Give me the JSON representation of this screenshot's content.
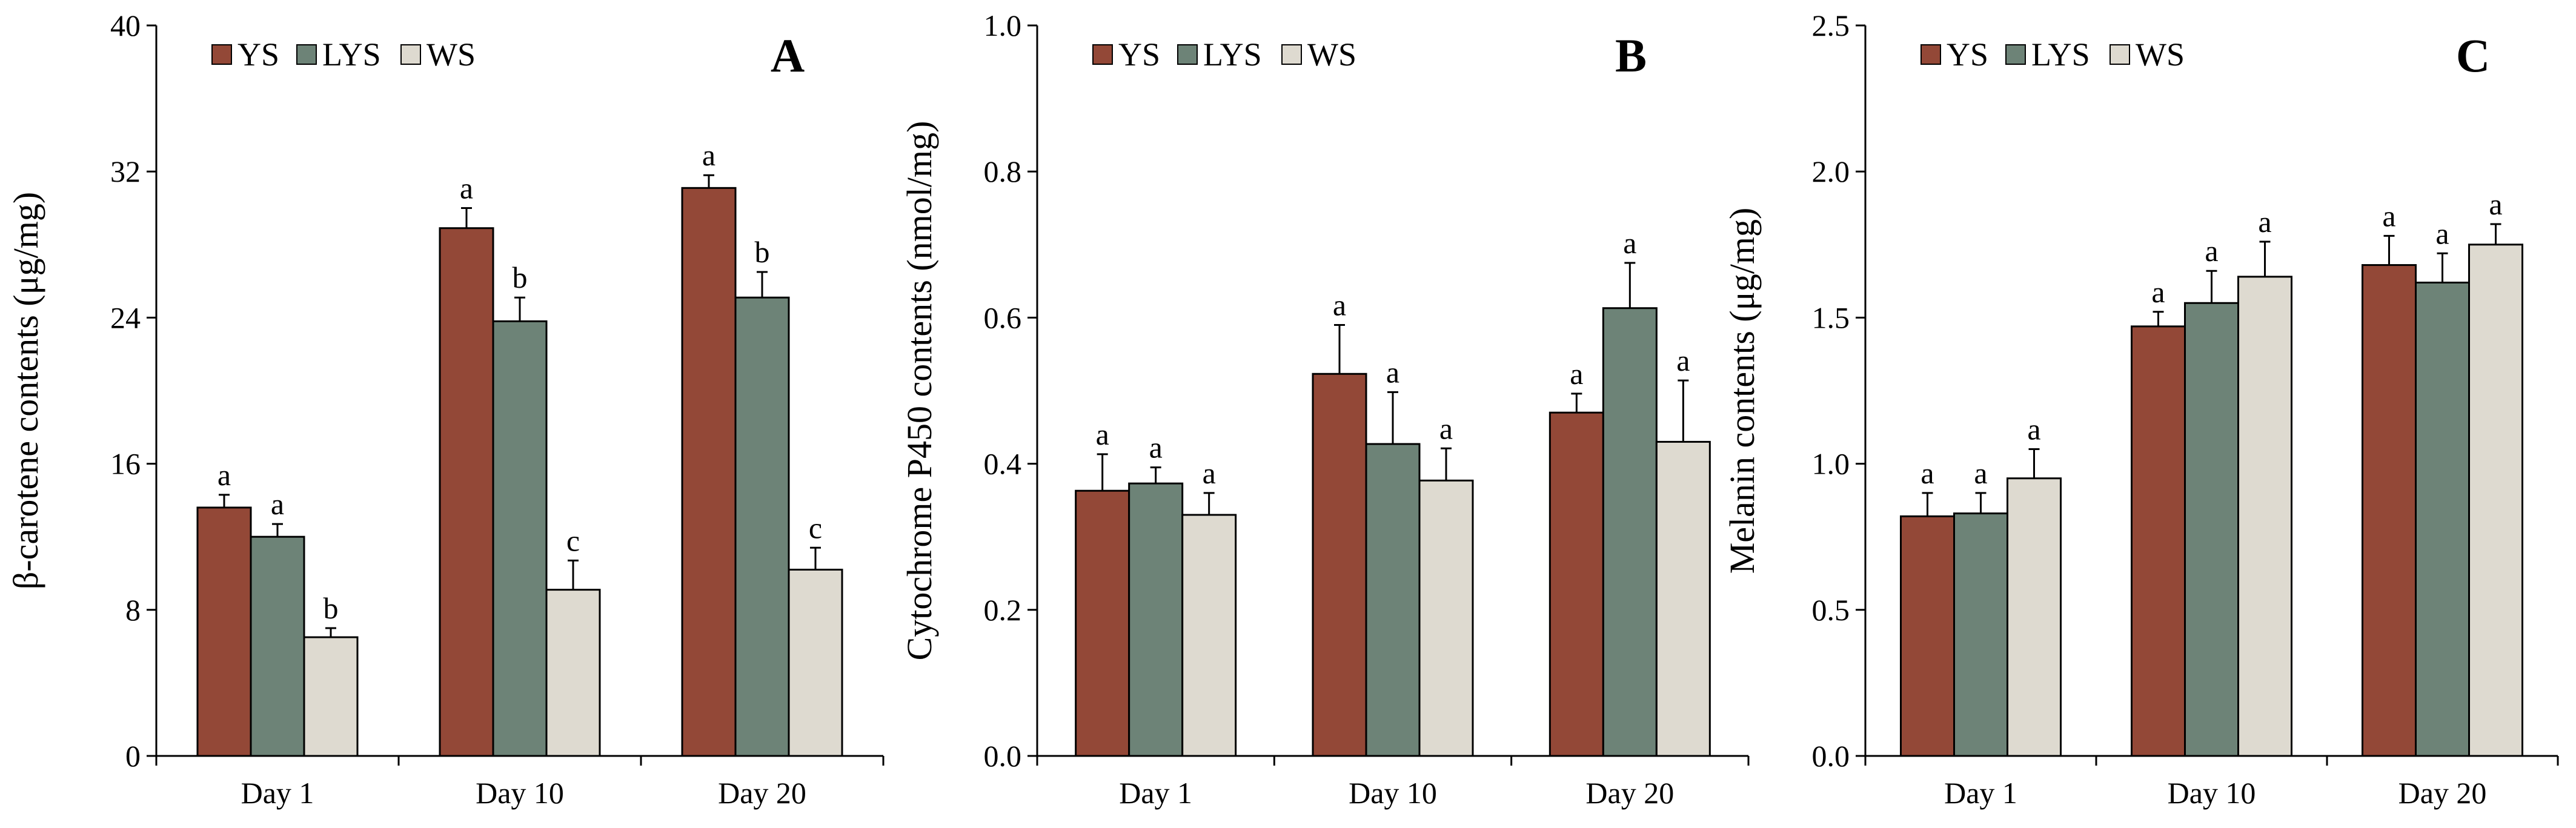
{
  "chart_data": [
    {
      "panel": "A",
      "type": "bar",
      "title": "",
      "xlabel": "",
      "ylabel": "β-carotene contents  (μg/mg)",
      "ylim": [
        0,
        40
      ],
      "y_ticks": [
        0,
        8,
        16,
        24,
        32,
        40
      ],
      "y_tick_labels": [
        "0",
        "8",
        "16",
        "24",
        "32",
        "40"
      ],
      "categories": [
        "Day 1",
        "Day 10",
        "Day 20"
      ],
      "legend_position": "top-left",
      "series": [
        {
          "name": "YS",
          "color": "#934837",
          "values": [
            13.6,
            28.9,
            31.1
          ],
          "errors": [
            0.7,
            1.1,
            0.7
          ],
          "significance": [
            "a",
            "a",
            "a"
          ]
        },
        {
          "name": "LYS",
          "color": "#6d8377",
          "values": [
            12.0,
            23.8,
            25.1
          ],
          "errors": [
            0.7,
            1.3,
            1.4
          ],
          "significance": [
            "a",
            "b",
            "b"
          ]
        },
        {
          "name": "WS",
          "color": "#dedad0",
          "values": [
            6.5,
            9.1,
            10.2
          ],
          "errors": [
            0.5,
            1.6,
            1.2
          ],
          "significance": [
            "b",
            "c",
            "c"
          ]
        }
      ]
    },
    {
      "panel": "B",
      "type": "bar",
      "title": "",
      "xlabel": "",
      "ylabel": "Cytochrome  P450 contents  (nmol/mg)",
      "ylim": [
        0,
        1.0
      ],
      "y_ticks": [
        0,
        0.2,
        0.4,
        0.6,
        0.8,
        1.0
      ],
      "y_tick_labels": [
        "0.0",
        "0.2",
        "0.4",
        "0.6",
        "0.8",
        "1.0"
      ],
      "categories": [
        "Day 1",
        "Day 10",
        "Day 20"
      ],
      "legend_position": "top-left",
      "series": [
        {
          "name": "YS",
          "color": "#934837",
          "values": [
            0.363,
            0.523,
            0.47
          ],
          "errors": [
            0.05,
            0.067,
            0.026
          ],
          "significance": [
            "a",
            "a",
            "a"
          ]
        },
        {
          "name": "LYS",
          "color": "#6d8377",
          "values": [
            0.373,
            0.427,
            0.613
          ],
          "errors": [
            0.022,
            0.071,
            0.062
          ],
          "significance": [
            "a",
            "a",
            "a"
          ]
        },
        {
          "name": "WS",
          "color": "#dedad0",
          "values": [
            0.33,
            0.377,
            0.43
          ],
          "errors": [
            0.03,
            0.044,
            0.084
          ],
          "significance": [
            "a",
            "a",
            "a"
          ]
        }
      ]
    },
    {
      "panel": "C",
      "type": "bar",
      "title": "",
      "xlabel": "",
      "ylabel": "Melanin contents  (μg/mg)",
      "ylim": [
        0,
        2.5
      ],
      "y_ticks": [
        0,
        0.5,
        1.0,
        1.5,
        2.0,
        2.5
      ],
      "y_tick_labels": [
        "0.0",
        "0.5",
        "1.0",
        "1.5",
        "2.0",
        "2.5"
      ],
      "categories": [
        "Day 1",
        "Day 10",
        "Day 20"
      ],
      "legend_position": "top-left",
      "series": [
        {
          "name": "YS",
          "color": "#934837",
          "values": [
            0.82,
            1.47,
            1.68
          ],
          "errors": [
            0.08,
            0.05,
            0.1
          ],
          "significance": [
            "a",
            "a",
            "a"
          ]
        },
        {
          "name": "LYS",
          "color": "#6d8377",
          "values": [
            0.83,
            1.55,
            1.62
          ],
          "errors": [
            0.07,
            0.11,
            0.1
          ],
          "significance": [
            "a",
            "a",
            "a"
          ]
        },
        {
          "name": "WS",
          "color": "#dedad0",
          "values": [
            0.95,
            1.64,
            1.75
          ],
          "errors": [
            0.1,
            0.12,
            0.07
          ],
          "significance": [
            "a",
            "a",
            "a"
          ]
        }
      ]
    }
  ]
}
